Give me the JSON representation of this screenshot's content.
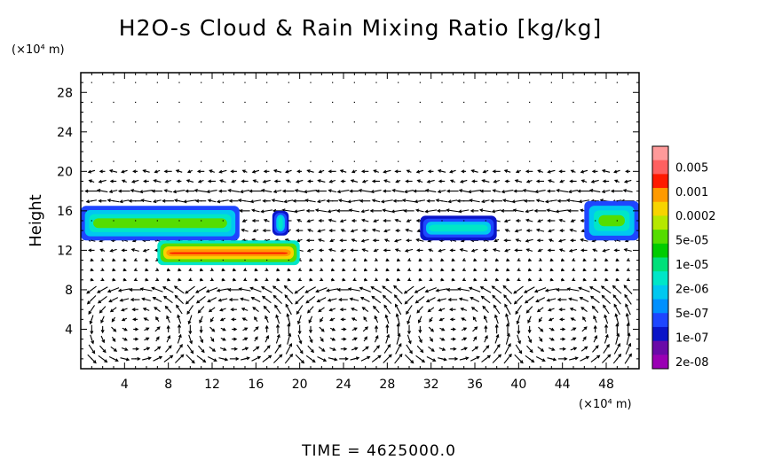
{
  "chart_data": {
    "type": "heatmap",
    "title": "H2O-s Cloud & Rain Mixing Ratio [kg/kg]",
    "xlabel": "",
    "ylabel": "Height",
    "x_unit": "(×10⁴ m)",
    "y_unit": "(×10⁴ m)",
    "xlim": [
      0,
      51
    ],
    "ylim": [
      0,
      30
    ],
    "x_ticks": [
      4,
      8,
      12,
      16,
      20,
      24,
      28,
      32,
      36,
      40,
      44,
      48
    ],
    "y_ticks": [
      4,
      8,
      12,
      16,
      20,
      24,
      28
    ],
    "grid": "dotted",
    "colorbar": {
      "labels": [
        "0.005",
        "0.001",
        "0.0002",
        "5e-05",
        "1e-05",
        "2e-06",
        "5e-07",
        "1e-07",
        "2e-08"
      ],
      "colors": [
        "#ff9a9a",
        "#ff6060",
        "#ff1a00",
        "#ff9a00",
        "#f7d400",
        "#b6e700",
        "#55dd00",
        "#00cc00",
        "#00e07a",
        "#00e6c8",
        "#00c8f0",
        "#0090ff",
        "#1e46ff",
        "#0a14c8",
        "#6a0aa8",
        "#9a00b4"
      ]
    },
    "features": [
      {
        "name": "cloud-left-upper",
        "x": [
          0,
          14.5
        ],
        "y": [
          13,
          16.5
        ],
        "level": "5e-07"
      },
      {
        "name": "cloud-left-lower",
        "x": [
          7,
          20
        ],
        "y": [
          10.5,
          13
        ],
        "level": "0.0002"
      },
      {
        "name": "cloud-mid-small",
        "x": [
          17.5,
          19
        ],
        "y": [
          13.5,
          16
        ],
        "level": "1e-07"
      },
      {
        "name": "cloud-right-a",
        "x": [
          31,
          38
        ],
        "y": [
          13,
          15.5
        ],
        "level": "1e-07"
      },
      {
        "name": "cloud-right-b",
        "x": [
          46,
          51
        ],
        "y": [
          13,
          17
        ],
        "level": "5e-07"
      }
    ],
    "wind_vectors": "shown"
  },
  "footer": {
    "time_text": "TIME = 4625000.0"
  }
}
